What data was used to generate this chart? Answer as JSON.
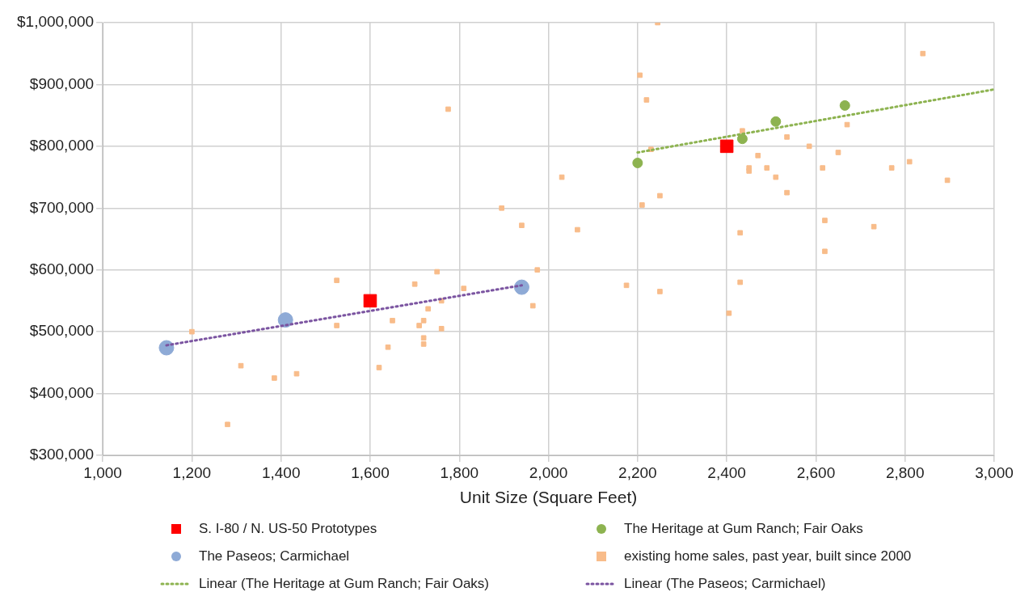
{
  "chart_data": {
    "type": "scatter",
    "xlabel": "Unit Size (Square Feet)",
    "xlim": [
      1000,
      3000
    ],
    "xticks": [
      {
        "value": 1000,
        "label": "1,000"
      },
      {
        "value": 1200,
        "label": "1,200"
      },
      {
        "value": 1400,
        "label": "1,400"
      },
      {
        "value": 1600,
        "label": "1,600"
      },
      {
        "value": 1800,
        "label": "1,800"
      },
      {
        "value": 2000,
        "label": "2,000"
      },
      {
        "value": 2200,
        "label": "2,200"
      },
      {
        "value": 2400,
        "label": "2,400"
      },
      {
        "value": 2600,
        "label": "2,600"
      },
      {
        "value": 2800,
        "label": "2,800"
      },
      {
        "value": 3000,
        "label": "3,000"
      }
    ],
    "ylim": [
      300000,
      1000000
    ],
    "yticks": [
      {
        "value": 300000,
        "label": "$300,000"
      },
      {
        "value": 400000,
        "label": "$400,000"
      },
      {
        "value": 500000,
        "label": "$500,000"
      },
      {
        "value": 600000,
        "label": "$600,000"
      },
      {
        "value": 700000,
        "label": "$700,000"
      },
      {
        "value": 800000,
        "label": "$800,000"
      },
      {
        "value": 900000,
        "label": "$900,000"
      },
      {
        "value": 1000000,
        "label": "$1,000,000"
      }
    ],
    "grid": true,
    "legend": "bottom",
    "series": [
      {
        "name": "S. I-80 / N. US-50 Prototypes",
        "color": "#ff0000",
        "marker": "square",
        "x": [
          1600,
          2400
        ],
        "values": [
          550000,
          800000
        ]
      },
      {
        "name": "The Heritage at Gum Ranch; Fair Oaks",
        "color": "#8db350",
        "marker": "circle",
        "x": [
          2200,
          2435,
          2510,
          2665
        ],
        "values": [
          773000,
          812000,
          840000,
          866000
        ]
      },
      {
        "name": "The Paseos; Carmichael",
        "color": "#8eaad6",
        "marker": "circle",
        "x": [
          1143,
          1410,
          1940
        ],
        "values": [
          474000,
          519000,
          572000
        ]
      },
      {
        "name": "existing home sales, past year, built since 2000",
        "color": "#f8bc8a",
        "marker": "square",
        "x": [
          1200,
          1310,
          1385,
          1435,
          1280,
          1525,
          1525,
          1620,
          1640,
          1650,
          1700,
          1710,
          1720,
          1720,
          1720,
          1730,
          1750,
          1760,
          1760,
          1775,
          1810,
          1895,
          1940,
          1965,
          1975,
          2030,
          2065,
          2175,
          2205,
          2210,
          2220,
          2230,
          2245,
          2250,
          2250,
          2405,
          2430,
          2430,
          2435,
          2450,
          2450,
          2470,
          2490,
          2510,
          2535,
          2535,
          2585,
          2615,
          2620,
          2620,
          2650,
          2670,
          2730,
          2770,
          2810,
          2840,
          2895
        ],
        "values": [
          500000,
          445000,
          425000,
          432000,
          350000,
          583000,
          510000,
          442000,
          475000,
          518000,
          577000,
          510000,
          518000,
          490000,
          480000,
          537000,
          597000,
          550000,
          505000,
          860000,
          570000,
          700000,
          672000,
          542000,
          600000,
          750000,
          665000,
          575000,
          915000,
          705000,
          875000,
          795000,
          1000000,
          720000,
          565000,
          530000,
          660000,
          580000,
          825000,
          765000,
          760000,
          785000,
          765000,
          750000,
          815000,
          725000,
          800000,
          765000,
          680000,
          630000,
          790000,
          835000,
          670000,
          765000,
          775000,
          950000,
          745000
        ]
      },
      {
        "name": "Linear (The Heritage at Gum Ranch; Fair Oaks)",
        "type": "line",
        "color": "#8db350",
        "marker": "none",
        "line_style": "dotted",
        "x": [
          2200,
          3000
        ],
        "values": [
          790000,
          892000
        ]
      },
      {
        "name": "Linear (The Paseos; Carmichael)",
        "type": "line",
        "color": "#7a53a0",
        "marker": "none",
        "line_style": "dotted",
        "x": [
          1143,
          1940
        ],
        "values": [
          478000,
          575000
        ]
      }
    ]
  }
}
